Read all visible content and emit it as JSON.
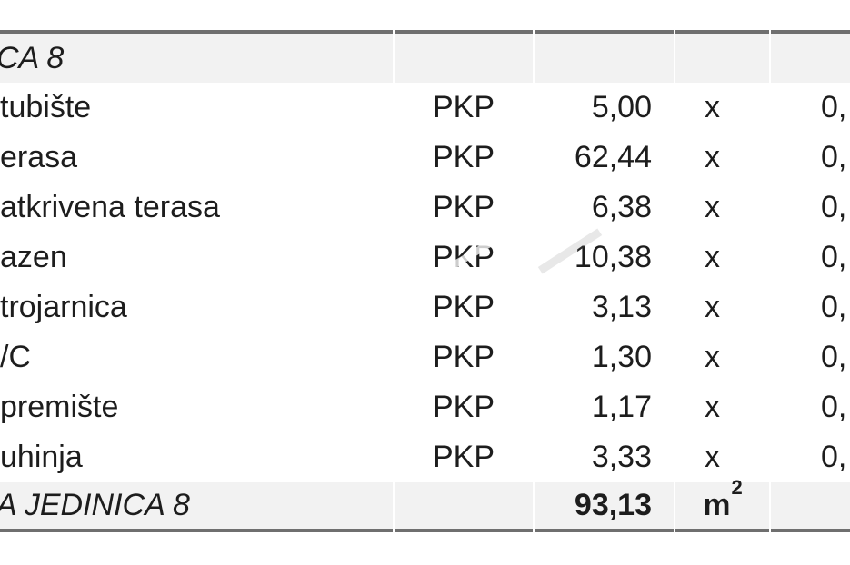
{
  "document": {
    "header": {
      "label": "CA 8"
    },
    "rows": [
      {
        "name": "tubište",
        "type": "PKP",
        "area": "5,00",
        "multiplier": "x",
        "coefficient": "0,"
      },
      {
        "name": "erasa",
        "type": "PKP",
        "area": "62,44",
        "multiplier": "x",
        "coefficient": "0,"
      },
      {
        "name": "atkrivena terasa",
        "type": "PKP",
        "area": "6,38",
        "multiplier": "x",
        "coefficient": "0,"
      },
      {
        "name": "azen",
        "type": "PKP",
        "area": "10,38",
        "multiplier": "x",
        "coefficient": "0,"
      },
      {
        "name": "trojarnica",
        "type": "PKP",
        "area": "3,13",
        "multiplier": "x",
        "coefficient": "0,"
      },
      {
        "name": "/C",
        "type": "PKP",
        "area": "1,30",
        "multiplier": "x",
        "coefficient": "0,"
      },
      {
        "name": "premište",
        "type": "PKP",
        "area": "1,17",
        "multiplier": "x",
        "coefficient": "0,"
      },
      {
        "name": "uhinja",
        "type": "PKP",
        "area": "3,33",
        "multiplier": "x",
        "coefficient": "0,"
      }
    ],
    "footer": {
      "label": "A JEDINICA 8",
      "total": "93,13",
      "unit": "m",
      "unit_exponent": "2"
    }
  },
  "colors": {
    "band_background": "#f2f2f2",
    "border": "#6f6f6f",
    "text": "#1d1d1d",
    "page_background": "#ffffff"
  }
}
